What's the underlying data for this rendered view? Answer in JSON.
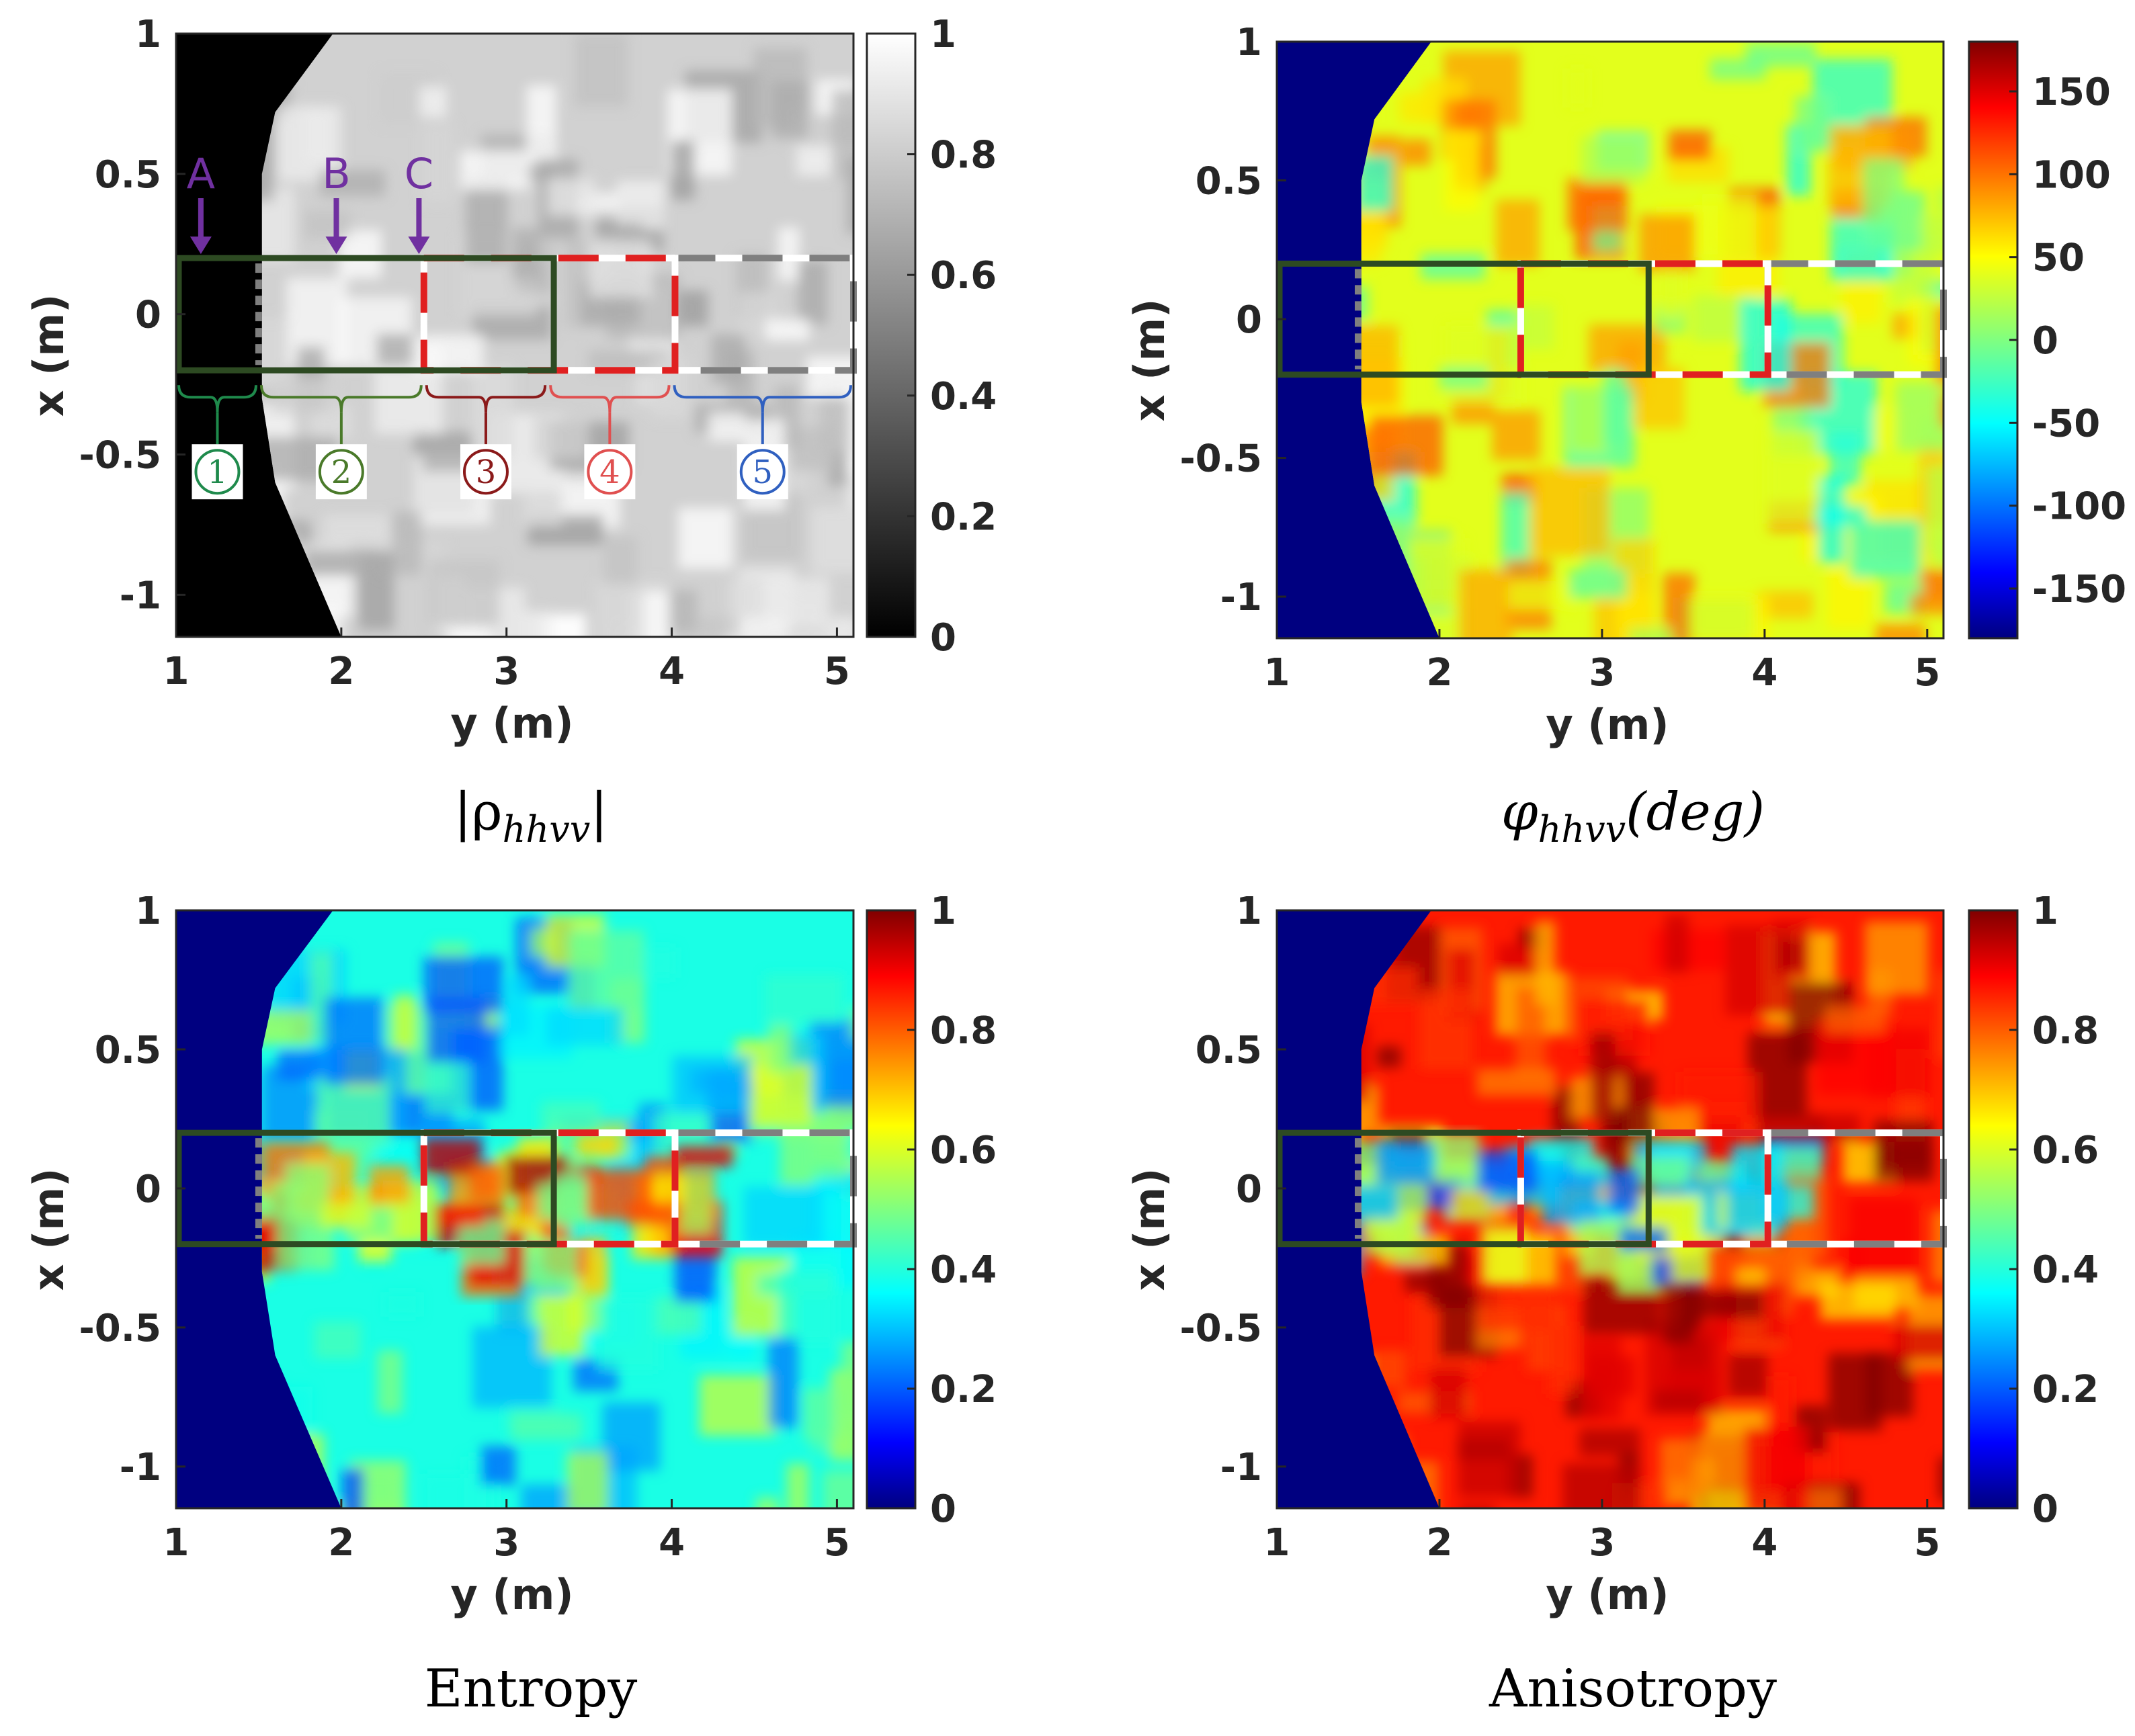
{
  "chart_data": [
    {
      "type": "heatmap",
      "title": "|ρ_hhvv|",
      "caption_main": "|ρ",
      "caption_sub": "hhvv",
      "caption_end": "|",
      "xlabel": "y (m)",
      "ylabel": "x (m)",
      "xlim": [
        1,
        5.1
      ],
      "ylim": [
        -1.15,
        1
      ],
      "xticks": [
        1,
        2,
        3,
        4,
        5
      ],
      "yticks": [
        1,
        0.5,
        0,
        -0.5,
        -1
      ],
      "yticklabels": [
        "1",
        "0.5",
        "0",
        "-0.5",
        "-1"
      ],
      "colormap": "gray",
      "clim": [
        0,
        1
      ],
      "cticks": [
        1,
        0.8,
        0.6,
        0.4,
        0.2,
        0
      ],
      "cticklabels": [
        "1",
        "0.8",
        "0.6",
        "0.4",
        "0.2",
        "0"
      ],
      "background_value": 0,
      "typical_value": 0.82,
      "markers": [
        {
          "label": "A",
          "y": 1.15
        },
        {
          "label": "B",
          "y": 1.97
        },
        {
          "label": "C",
          "y": 2.47
        }
      ],
      "regions": [
        {
          "label": "1",
          "y_range": [
            1.0,
            1.5
          ],
          "color": "#1f8a4c"
        },
        {
          "label": "2",
          "y_range": [
            1.5,
            2.5
          ],
          "color": "#4a7a2a"
        },
        {
          "label": "3",
          "y_range": [
            2.5,
            3.25
          ],
          "color": "#8b1a1a"
        },
        {
          "label": "4",
          "y_range": [
            3.25,
            4.0
          ],
          "color": "#e05050"
        },
        {
          "label": "5",
          "y_range": [
            4.0,
            5.1
          ],
          "color": "#3060c0"
        }
      ]
    },
    {
      "type": "heatmap",
      "title": "φ_hhvv(deg)",
      "caption_main": "φ",
      "caption_sub": "hhvv",
      "caption_end": "(deg)",
      "xlabel": "y (m)",
      "ylabel": "x (m)",
      "xlim": [
        1,
        5.1
      ],
      "ylim": [
        -1.15,
        1
      ],
      "xticks": [
        1,
        2,
        3,
        4,
        5
      ],
      "yticks": [
        1,
        0.5,
        0,
        -0.5,
        -1
      ],
      "yticklabels": [
        "1",
        "0.5",
        "0",
        "-0.5",
        "-1"
      ],
      "colormap": "jet",
      "clim": [
        -180,
        180
      ],
      "cticks": [
        150,
        100,
        50,
        0,
        -50,
        -100,
        -150
      ],
      "cticklabels": [
        "150",
        "100",
        "50",
        "0",
        "-50",
        "-100",
        "-150"
      ],
      "background_value": -180,
      "typical_value": 35
    },
    {
      "type": "heatmap",
      "title": "Entropy",
      "caption_main": "Entropy",
      "caption_sub": "",
      "caption_end": "",
      "xlabel": "y (m)",
      "ylabel": "x (m)",
      "xlim": [
        1,
        5.1
      ],
      "ylim": [
        -1.15,
        1
      ],
      "xticks": [
        1,
        2,
        3,
        4,
        5
      ],
      "yticks": [
        1,
        0.5,
        0,
        -0.5,
        -1
      ],
      "yticklabels": [
        "1",
        "0.5",
        "0",
        "-0.5",
        "-1"
      ],
      "colormap": "jet",
      "clim": [
        0,
        1
      ],
      "cticks": [
        1,
        0.8,
        0.6,
        0.4,
        0.2,
        0
      ],
      "cticklabels": [
        "1",
        "0.8",
        "0.6",
        "0.4",
        "0.2",
        "0"
      ],
      "background_value": 0,
      "typical_value": 0.4,
      "strip_value": 0.72
    },
    {
      "type": "heatmap",
      "title": "Anisotropy",
      "caption_main": "Anisotropy",
      "caption_sub": "",
      "caption_end": "",
      "xlabel": "y (m)",
      "ylabel": "x (m)",
      "xlim": [
        1,
        5.1
      ],
      "ylim": [
        -1.15,
        1
      ],
      "xticks": [
        1,
        2,
        3,
        4,
        5
      ],
      "yticks": [
        1,
        0.5,
        0,
        -0.5,
        -1
      ],
      "yticklabels": [
        "1",
        "0.5",
        "0",
        "-0.5",
        "-1"
      ],
      "colormap": "jet",
      "clim": [
        0,
        1
      ],
      "cticks": [
        1,
        0.8,
        0.6,
        0.4,
        0.2,
        0
      ],
      "cticklabels": [
        "1",
        "0.8",
        "0.6",
        "0.4",
        "0.2",
        "0"
      ],
      "background_value": 0,
      "typical_value": 0.85,
      "strip_value": 0.45
    }
  ],
  "overlay": {
    "strip_x_range": [
      -0.2,
      0.2
    ],
    "solid_box_y_range": [
      1.0,
      3.27
    ],
    "red_white_box_y_range": [
      2.5,
      4.02
    ],
    "gray_white_box_y_range": [
      4.02,
      5.1
    ],
    "dotted_line_y": 1.5
  }
}
